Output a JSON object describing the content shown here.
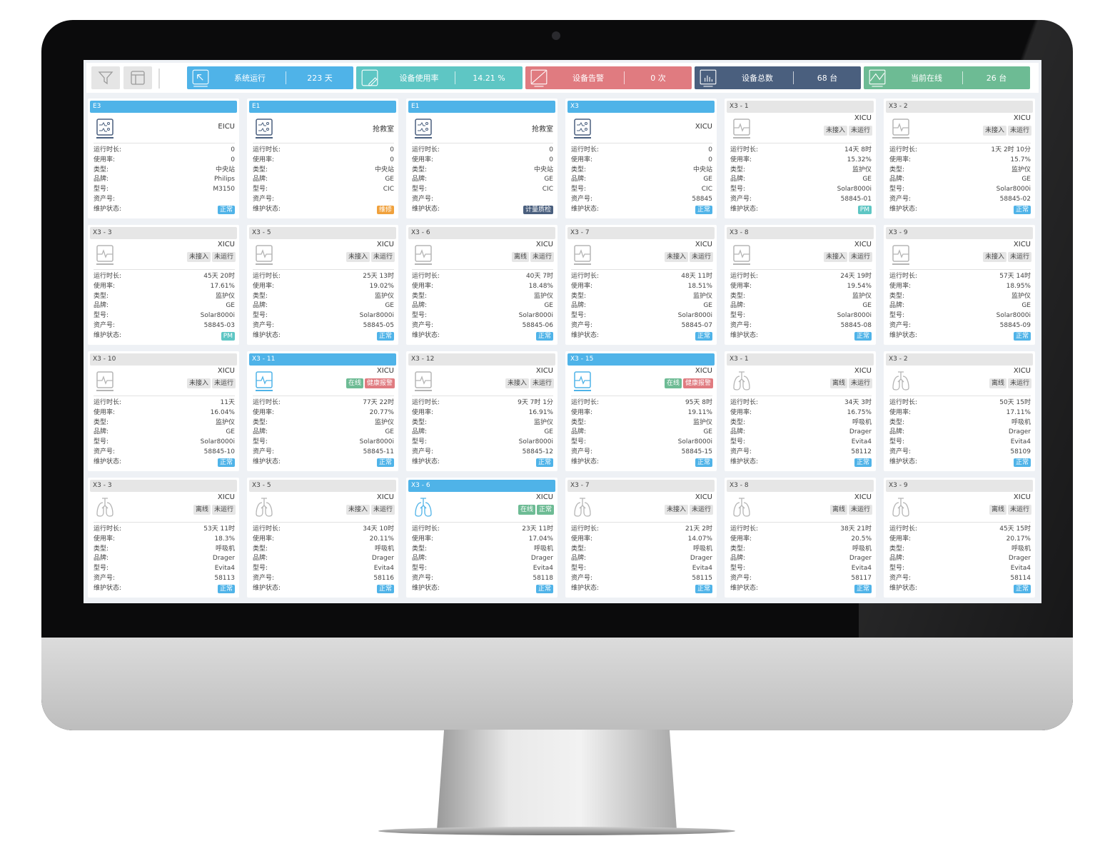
{
  "toolbar": {
    "filter_icon": "filter-icon",
    "layout_icon": "layout-icon"
  },
  "stats": [
    {
      "icon": "cursor-icon",
      "label": "系统运行",
      "value": "223 天",
      "color": "#4fb3e8"
    },
    {
      "icon": "edit-icon",
      "label": "设备使用率",
      "value": "14.21 %",
      "color": "#5ec6c4"
    },
    {
      "icon": "alarm-icon",
      "label": "设备告警",
      "value": "0 次",
      "color": "#e07b80"
    },
    {
      "icon": "bar-chart-icon",
      "label": "设备总数",
      "value": "68 台",
      "color": "#4a5f7e"
    },
    {
      "icon": "line-chart-icon",
      "label": "当前在线",
      "value": "26 台",
      "color": "#6dbb94"
    }
  ],
  "field_labels": [
    "运行时长:",
    "使用率:",
    "类型:",
    "品牌:",
    "型号:",
    "资产号:",
    "维护状态:"
  ],
  "colors": {
    "active": "#4fb3e8",
    "normal": "#4fb3e8",
    "repair": "#f0a13c",
    "metrology": "#4a5f7e",
    "pm": "#5ec6c4",
    "online": "#6dbb94",
    "alert": "#e07b80",
    "station": "#4a5f7e",
    "inactive": "#b5b5b5"
  },
  "cards": [
    {
      "title": "E3",
      "active": true,
      "icon": "central-station",
      "location": "EICU",
      "tags": [],
      "values": [
        "0",
        "0",
        "中央站",
        "Philips",
        "M3150",
        ""
      ],
      "status": {
        "text": "正常",
        "kind": "normal"
      }
    },
    {
      "title": "E1",
      "active": true,
      "icon": "central-station",
      "location": "抢救室",
      "tags": [],
      "values": [
        "0",
        "0",
        "中央站",
        "GE",
        "CIC",
        ""
      ],
      "status": {
        "text": "维修",
        "kind": "repair"
      }
    },
    {
      "title": "E1",
      "active": true,
      "icon": "central-station",
      "location": "抢救室",
      "tags": [],
      "values": [
        "0",
        "0",
        "中央站",
        "GE",
        "CIC",
        ""
      ],
      "status": {
        "text": "计量质检",
        "kind": "metrology"
      }
    },
    {
      "title": "X3",
      "active": true,
      "icon": "central-station",
      "location": "XICU",
      "tags": [],
      "values": [
        "0",
        "0",
        "中央站",
        "GE",
        "CIC",
        "58845"
      ],
      "status": {
        "text": "正常",
        "kind": "normal"
      }
    },
    {
      "title": "X3 - 1",
      "active": false,
      "icon": "monitor",
      "location": "XICU",
      "tags": [
        {
          "text": "未接入",
          "kind": "grey"
        },
        {
          "text": "未运行",
          "kind": "grey"
        }
      ],
      "values": [
        "14天 8时",
        "15.32%",
        "监护仪",
        "GE",
        "Solar8000i",
        "58845-01"
      ],
      "status": {
        "text": "PM",
        "kind": "pm"
      }
    },
    {
      "title": "X3 - 2",
      "active": false,
      "icon": "monitor",
      "location": "XICU",
      "tags": [
        {
          "text": "未接入",
          "kind": "grey"
        },
        {
          "text": "未运行",
          "kind": "grey"
        }
      ],
      "values": [
        "1天 2时 10分",
        "15.7%",
        "监护仪",
        "GE",
        "Solar8000i",
        "58845-02"
      ],
      "status": {
        "text": "正常",
        "kind": "normal"
      }
    },
    {
      "title": "X3 - 3",
      "active": false,
      "icon": "monitor",
      "location": "XICU",
      "tags": [
        {
          "text": "未接入",
          "kind": "grey"
        },
        {
          "text": "未运行",
          "kind": "grey"
        }
      ],
      "values": [
        "45天 20时",
        "17.61%",
        "监护仪",
        "GE",
        "Solar8000i",
        "58845-03"
      ],
      "status": {
        "text": "PM",
        "kind": "pm"
      }
    },
    {
      "title": "X3 - 5",
      "active": false,
      "icon": "monitor",
      "location": "XICU",
      "tags": [
        {
          "text": "未接入",
          "kind": "grey"
        },
        {
          "text": "未运行",
          "kind": "grey"
        }
      ],
      "values": [
        "25天 13时",
        "19.02%",
        "监护仪",
        "GE",
        "Solar8000i",
        "58845-05"
      ],
      "status": {
        "text": "正常",
        "kind": "normal"
      }
    },
    {
      "title": "X3 - 6",
      "active": false,
      "icon": "monitor",
      "location": "XICU",
      "tags": [
        {
          "text": "离线",
          "kind": "grey"
        },
        {
          "text": "未运行",
          "kind": "grey"
        }
      ],
      "values": [
        "40天 7时",
        "18.48%",
        "监护仪",
        "GE",
        "Solar8000i",
        "58845-06"
      ],
      "status": {
        "text": "正常",
        "kind": "normal"
      }
    },
    {
      "title": "X3 - 7",
      "active": false,
      "icon": "monitor",
      "location": "XICU",
      "tags": [
        {
          "text": "未接入",
          "kind": "grey"
        },
        {
          "text": "未运行",
          "kind": "grey"
        }
      ],
      "values": [
        "48天 11时",
        "18.51%",
        "监护仪",
        "GE",
        "Solar8000i",
        "58845-07"
      ],
      "status": {
        "text": "正常",
        "kind": "normal"
      }
    },
    {
      "title": "X3 - 8",
      "active": false,
      "icon": "monitor",
      "location": "XICU",
      "tags": [
        {
          "text": "未接入",
          "kind": "grey"
        },
        {
          "text": "未运行",
          "kind": "grey"
        }
      ],
      "values": [
        "24天 19时",
        "19.54%",
        "监护仪",
        "GE",
        "Solar8000i",
        "58845-08"
      ],
      "status": {
        "text": "正常",
        "kind": "normal"
      }
    },
    {
      "title": "X3 - 9",
      "active": false,
      "icon": "monitor",
      "location": "XICU",
      "tags": [
        {
          "text": "未接入",
          "kind": "grey"
        },
        {
          "text": "未运行",
          "kind": "grey"
        }
      ],
      "values": [
        "57天 14时",
        "18.95%",
        "监护仪",
        "GE",
        "Solar8000i",
        "58845-09"
      ],
      "status": {
        "text": "正常",
        "kind": "normal"
      }
    },
    {
      "title": "X3 - 10",
      "active": false,
      "icon": "monitor",
      "location": "XICU",
      "tags": [
        {
          "text": "未接入",
          "kind": "grey"
        },
        {
          "text": "未运行",
          "kind": "grey"
        }
      ],
      "values": [
        "11天",
        "16.04%",
        "监护仪",
        "GE",
        "Solar8000i",
        "58845-10"
      ],
      "status": {
        "text": "正常",
        "kind": "normal"
      }
    },
    {
      "title": "X3 - 11",
      "active": true,
      "icon": "monitor",
      "location": "XICU",
      "tags": [
        {
          "text": "在线",
          "kind": "online"
        },
        {
          "text": "健康报警",
          "kind": "alert"
        }
      ],
      "values": [
        "77天 22时",
        "20.77%",
        "监护仪",
        "GE",
        "Solar8000i",
        "58845-11"
      ],
      "status": {
        "text": "正常",
        "kind": "normal"
      }
    },
    {
      "title": "X3 - 12",
      "active": false,
      "icon": "monitor",
      "location": "XICU",
      "tags": [
        {
          "text": "未接入",
          "kind": "grey"
        },
        {
          "text": "未运行",
          "kind": "grey"
        }
      ],
      "values": [
        "9天 7时 1分",
        "16.91%",
        "监护仪",
        "GE",
        "Solar8000i",
        "58845-12"
      ],
      "status": {
        "text": "正常",
        "kind": "normal"
      }
    },
    {
      "title": "X3 - 15",
      "active": true,
      "icon": "monitor",
      "location": "XICU",
      "tags": [
        {
          "text": "在线",
          "kind": "online"
        },
        {
          "text": "健康报警",
          "kind": "alert"
        }
      ],
      "values": [
        "95天 8时",
        "19.11%",
        "监护仪",
        "GE",
        "Solar8000i",
        "58845-15"
      ],
      "status": {
        "text": "正常",
        "kind": "normal"
      }
    },
    {
      "title": "X3 - 1",
      "active": false,
      "icon": "ventilator",
      "location": "XICU",
      "tags": [
        {
          "text": "离线",
          "kind": "grey"
        },
        {
          "text": "未运行",
          "kind": "grey"
        }
      ],
      "values": [
        "34天 3时",
        "16.75%",
        "呼吸机",
        "Drager",
        "Evita4",
        "58112"
      ],
      "status": {
        "text": "正常",
        "kind": "normal"
      }
    },
    {
      "title": "X3 - 2",
      "active": false,
      "icon": "ventilator",
      "location": "XICU",
      "tags": [
        {
          "text": "离线",
          "kind": "grey"
        },
        {
          "text": "未运行",
          "kind": "grey"
        }
      ],
      "values": [
        "50天 15时",
        "17.11%",
        "呼吸机",
        "Drager",
        "Evita4",
        "58109"
      ],
      "status": {
        "text": "正常",
        "kind": "normal"
      }
    },
    {
      "title": "X3 - 3",
      "active": false,
      "icon": "ventilator",
      "location": "XICU",
      "tags": [
        {
          "text": "离线",
          "kind": "grey"
        },
        {
          "text": "未运行",
          "kind": "grey"
        }
      ],
      "values": [
        "53天 11时",
        "18.3%",
        "呼吸机",
        "Drager",
        "Evita4",
        "58113"
      ],
      "status": {
        "text": "正常",
        "kind": "normal"
      }
    },
    {
      "title": "X3 - 5",
      "active": false,
      "icon": "ventilator",
      "location": "XICU",
      "tags": [
        {
          "text": "未接入",
          "kind": "grey"
        },
        {
          "text": "未运行",
          "kind": "grey"
        }
      ],
      "values": [
        "34天 10时",
        "20.11%",
        "呼吸机",
        "Drager",
        "Evita4",
        "58116"
      ],
      "status": {
        "text": "正常",
        "kind": "normal"
      }
    },
    {
      "title": "X3 - 6",
      "active": true,
      "icon": "ventilator",
      "location": "XICU",
      "tags": [
        {
          "text": "在线",
          "kind": "online"
        },
        {
          "text": "正常",
          "kind": "online"
        }
      ],
      "values": [
        "23天 11时",
        "17.04%",
        "呼吸机",
        "Drager",
        "Evita4",
        "58118"
      ],
      "status": {
        "text": "正常",
        "kind": "normal"
      }
    },
    {
      "title": "X3 - 7",
      "active": false,
      "icon": "ventilator",
      "location": "XICU",
      "tags": [
        {
          "text": "未接入",
          "kind": "grey"
        },
        {
          "text": "未运行",
          "kind": "grey"
        }
      ],
      "values": [
        "21天 2时",
        "14.07%",
        "呼吸机",
        "Drager",
        "Evita4",
        "58115"
      ],
      "status": {
        "text": "正常",
        "kind": "normal"
      }
    },
    {
      "title": "X3 - 8",
      "active": false,
      "icon": "ventilator",
      "location": "XICU",
      "tags": [
        {
          "text": "离线",
          "kind": "grey"
        },
        {
          "text": "未运行",
          "kind": "grey"
        }
      ],
      "values": [
        "38天 21时",
        "20.5%",
        "呼吸机",
        "Drager",
        "Evita4",
        "58117"
      ],
      "status": {
        "text": "正常",
        "kind": "normal"
      }
    },
    {
      "title": "X3 - 9",
      "active": false,
      "icon": "ventilator",
      "location": "XICU",
      "tags": [
        {
          "text": "离线",
          "kind": "grey"
        },
        {
          "text": "未运行",
          "kind": "grey"
        }
      ],
      "values": [
        "45天 15时",
        "20.17%",
        "呼吸机",
        "Drager",
        "Evita4",
        "58114"
      ],
      "status": {
        "text": "正常",
        "kind": "normal"
      }
    }
  ]
}
